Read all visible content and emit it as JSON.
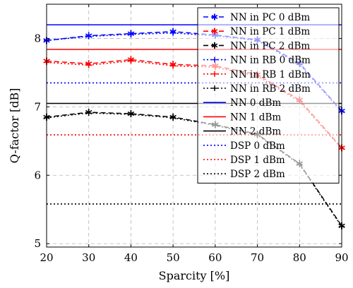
{
  "chart_data": {
    "type": "line",
    "title": "",
    "xlabel": "Sparcity [%]",
    "ylabel": "Q-factor [dB]",
    "xlim": [
      20,
      90
    ],
    "ylim": [
      4.95,
      8.5
    ],
    "x_ticks": [
      20,
      30,
      40,
      50,
      60,
      70,
      80,
      90
    ],
    "y_ticks": [
      5,
      6,
      7,
      8
    ],
    "grid": true,
    "legend_position": "top-right",
    "series": [
      {
        "name": "NN in PC 0 dBm",
        "color": "#0000ff",
        "style": "dashed",
        "marker": "star",
        "x": [
          20,
          30,
          40,
          50,
          60,
          70,
          80,
          90
        ],
        "y": [
          7.97,
          8.04,
          8.07,
          8.1,
          8.05,
          7.98,
          7.64,
          6.94
        ]
      },
      {
        "name": "NN in PC 1 dBm",
        "color": "#ff0000",
        "style": "dashed",
        "marker": "star",
        "x": [
          20,
          30,
          40,
          50,
          60,
          70,
          80,
          90
        ],
        "y": [
          7.67,
          7.63,
          7.69,
          7.62,
          7.6,
          7.47,
          7.1,
          6.4
        ]
      },
      {
        "name": "NN in PC 2 dBm",
        "color": "#000000",
        "style": "dashed",
        "marker": "star",
        "x": [
          20,
          30,
          40,
          50,
          60,
          70,
          80,
          90
        ],
        "y": [
          6.85,
          6.92,
          6.9,
          6.85,
          6.74,
          6.6,
          6.17,
          5.26
        ]
      },
      {
        "name": "NN in RB 0 dBm",
        "color": "#0000ff",
        "style": "dotted",
        "marker": "plus",
        "x": [
          20,
          30,
          40,
          50,
          60,
          70,
          80,
          90
        ],
        "y": [
          7.97,
          8.03,
          8.06,
          8.08,
          8.04,
          7.97,
          7.62,
          6.93
        ]
      },
      {
        "name": "NN in RB 1 dBm",
        "color": "#ff0000",
        "style": "dotted",
        "marker": "plus",
        "x": [
          20,
          30,
          40,
          50,
          60,
          70,
          80,
          90
        ],
        "y": [
          7.65,
          7.61,
          7.67,
          7.6,
          7.58,
          7.45,
          7.08,
          6.39
        ]
      },
      {
        "name": "NN in RB 2 dBm",
        "color": "#000000",
        "style": "dotted",
        "marker": "plus",
        "x": [
          20,
          30,
          40,
          50,
          60,
          70,
          80,
          90
        ],
        "y": [
          6.84,
          6.91,
          6.89,
          6.84,
          6.73,
          6.59,
          6.16,
          5.25
        ]
      },
      {
        "name": "NN 0 dBm",
        "color": "#0000ff",
        "style": "solid",
        "marker": "none",
        "x": [
          20,
          90
        ],
        "y": [
          8.2,
          8.2
        ]
      },
      {
        "name": "NN 1 dBm",
        "color": "#ff0000",
        "style": "solid",
        "marker": "none",
        "x": [
          20,
          90
        ],
        "y": [
          7.84,
          7.84
        ]
      },
      {
        "name": "NN 2 dBm",
        "color": "#000000",
        "style": "solid",
        "marker": "none",
        "x": [
          20,
          90
        ],
        "y": [
          7.05,
          7.05
        ]
      },
      {
        "name": "DSP 0 dBm",
        "color": "#0000ff",
        "style": "dotted",
        "marker": "none",
        "x": [
          20,
          90
        ],
        "y": [
          7.35,
          7.35
        ]
      },
      {
        "name": "DSP 1 dBm",
        "color": "#ff0000",
        "style": "dotted",
        "marker": "none",
        "x": [
          20,
          90
        ],
        "y": [
          6.59,
          6.59
        ]
      },
      {
        "name": "DSP 2 dBm",
        "color": "#000000",
        "style": "dotted",
        "marker": "none",
        "x": [
          20,
          90
        ],
        "y": [
          5.58,
          5.58
        ]
      }
    ]
  }
}
